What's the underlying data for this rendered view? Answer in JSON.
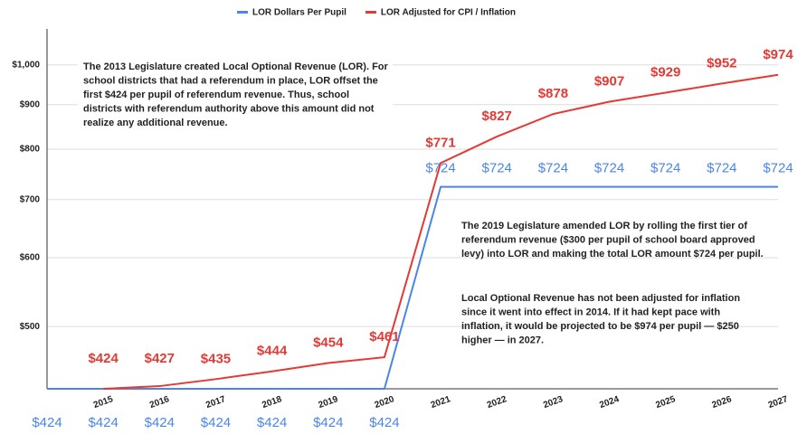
{
  "chart_data": {
    "type": "line",
    "categories": [
      null,
      "2015",
      "2016",
      "2017",
      "2018",
      "2019",
      "2020",
      "2021",
      "2022",
      "2023",
      "2024",
      "2025",
      "2026",
      "2027"
    ],
    "series": [
      {
        "name": "LOR Dollars Per Pupil",
        "color": "#4a86e8",
        "values": [
          424,
          424,
          424,
          424,
          424,
          424,
          424,
          724,
          724,
          724,
          724,
          724,
          724,
          724
        ],
        "value_labels": [
          "$424",
          "$424",
          "$424",
          "$424",
          "$424",
          "$424",
          "$424",
          "$724",
          "$724",
          "$724",
          "$724",
          "$724",
          "$724",
          "$724"
        ]
      },
      {
        "name": "LOR Adjusted for CPI / Inflation",
        "color": "#e53935",
        "values": [
          null,
          424,
          427,
          435,
          444,
          454,
          461,
          771,
          827,
          878,
          907,
          929,
          952,
          974
        ],
        "value_labels": [
          null,
          "$424",
          "$427",
          "$435",
          "$444",
          "$454",
          "$461",
          "$771",
          "$827",
          "$878",
          "$907",
          "$929",
          "$952",
          "$974"
        ]
      }
    ],
    "ylim": [
      424,
      1100
    ],
    "log_scale": true,
    "grid": true,
    "legend": "top",
    "yticks": [
      {
        "value": 500,
        "label": "$500"
      },
      {
        "value": 600,
        "label": "$600"
      },
      {
        "value": 700,
        "label": "$700"
      },
      {
        "value": 800,
        "label": "$800"
      },
      {
        "value": 900,
        "label": "$900"
      },
      {
        "value": 1000,
        "label": "$1,000"
      }
    ],
    "annotations": [
      [
        "The 2013 Legislature created Local Optional Revenue (LOR). For",
        "school districts that had a referendum in place, LOR offset the",
        "first $424 per pupil of referendum revenue. Thus, school",
        "districts with referendum authority above this amount did not",
        "realize any additional revenue."
      ],
      [
        "The 2019 Legislature amended LOR by rolling the first tier of",
        "referendum revenue ($300 per pupil of school board approved",
        "levy) into LOR and making the total LOR amount $724 per pupil."
      ],
      [
        "Local Optional Revenue has not been adjusted for inflation",
        "since it went into effect in 2014. If it had kept pace with",
        "inflation, it would be projected to be $974 per pupil — $250",
        "higher — in 2027."
      ]
    ]
  }
}
